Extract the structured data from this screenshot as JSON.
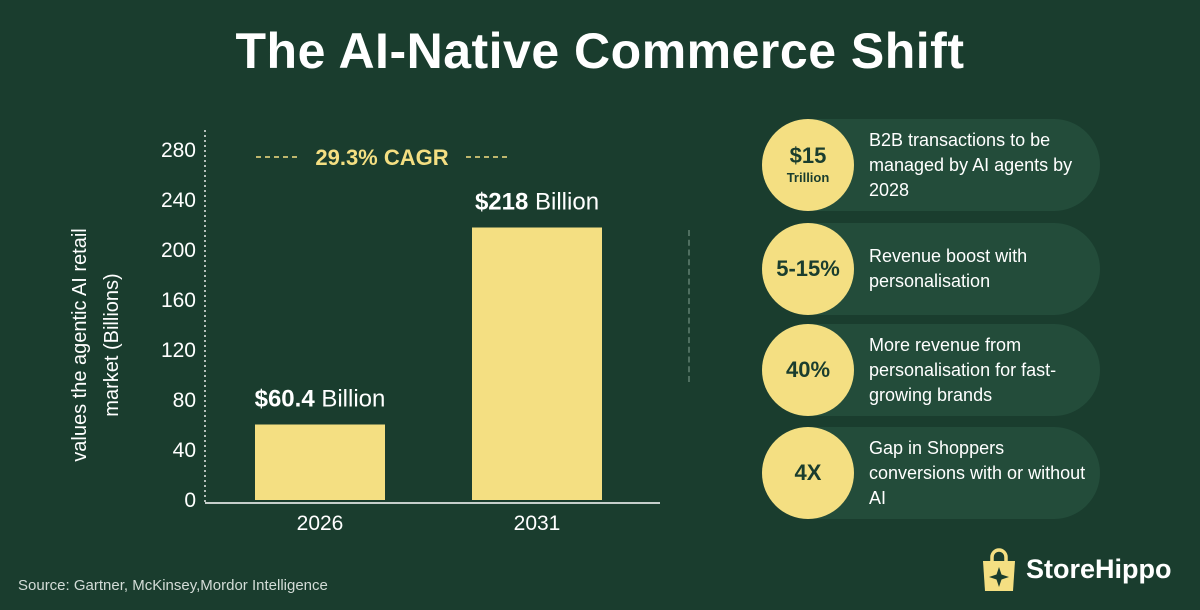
{
  "title": "The AI-Native Commerce Shift",
  "chart_data": {
    "type": "bar",
    "categories": [
      "2026",
      "2031"
    ],
    "values": [
      60.4,
      218
    ],
    "value_labels": [
      {
        "bold": "$60.4",
        "rest": " Billion"
      },
      {
        "bold": "$218",
        "rest": " Billion"
      }
    ],
    "ylabel_lines": [
      "values the agentic AI retail",
      "market (Billions)"
    ],
    "ylim": [
      0,
      280
    ],
    "yticks": [
      0,
      40,
      80,
      120,
      160,
      200,
      240,
      280
    ],
    "annotation": "29.3% CAGR",
    "bar_color": "#f4df82",
    "grid": false,
    "legend": "none"
  },
  "stats": [
    {
      "value": "$15",
      "unit": "Trillion",
      "text": "B2B transactions to be managed by AI agents by 2028"
    },
    {
      "value": "5-15%",
      "unit": "",
      "text": "Revenue boost with personalisation"
    },
    {
      "value": "40%",
      "unit": "",
      "text": "More revenue from personalisation for fast-growing brands"
    },
    {
      "value": "4X",
      "unit": "",
      "text": "Gap in Shoppers conversions with or without AI"
    }
  ],
  "source": "Source: Gartner, McKinsey,Mordor Intelligence",
  "logo": {
    "text": "StoreHippo",
    "icon": "shopping-bag-sparkle-icon"
  },
  "colors": {
    "background": "#1a3d2e",
    "accent": "#f4df82",
    "pill": "#234c3a"
  }
}
